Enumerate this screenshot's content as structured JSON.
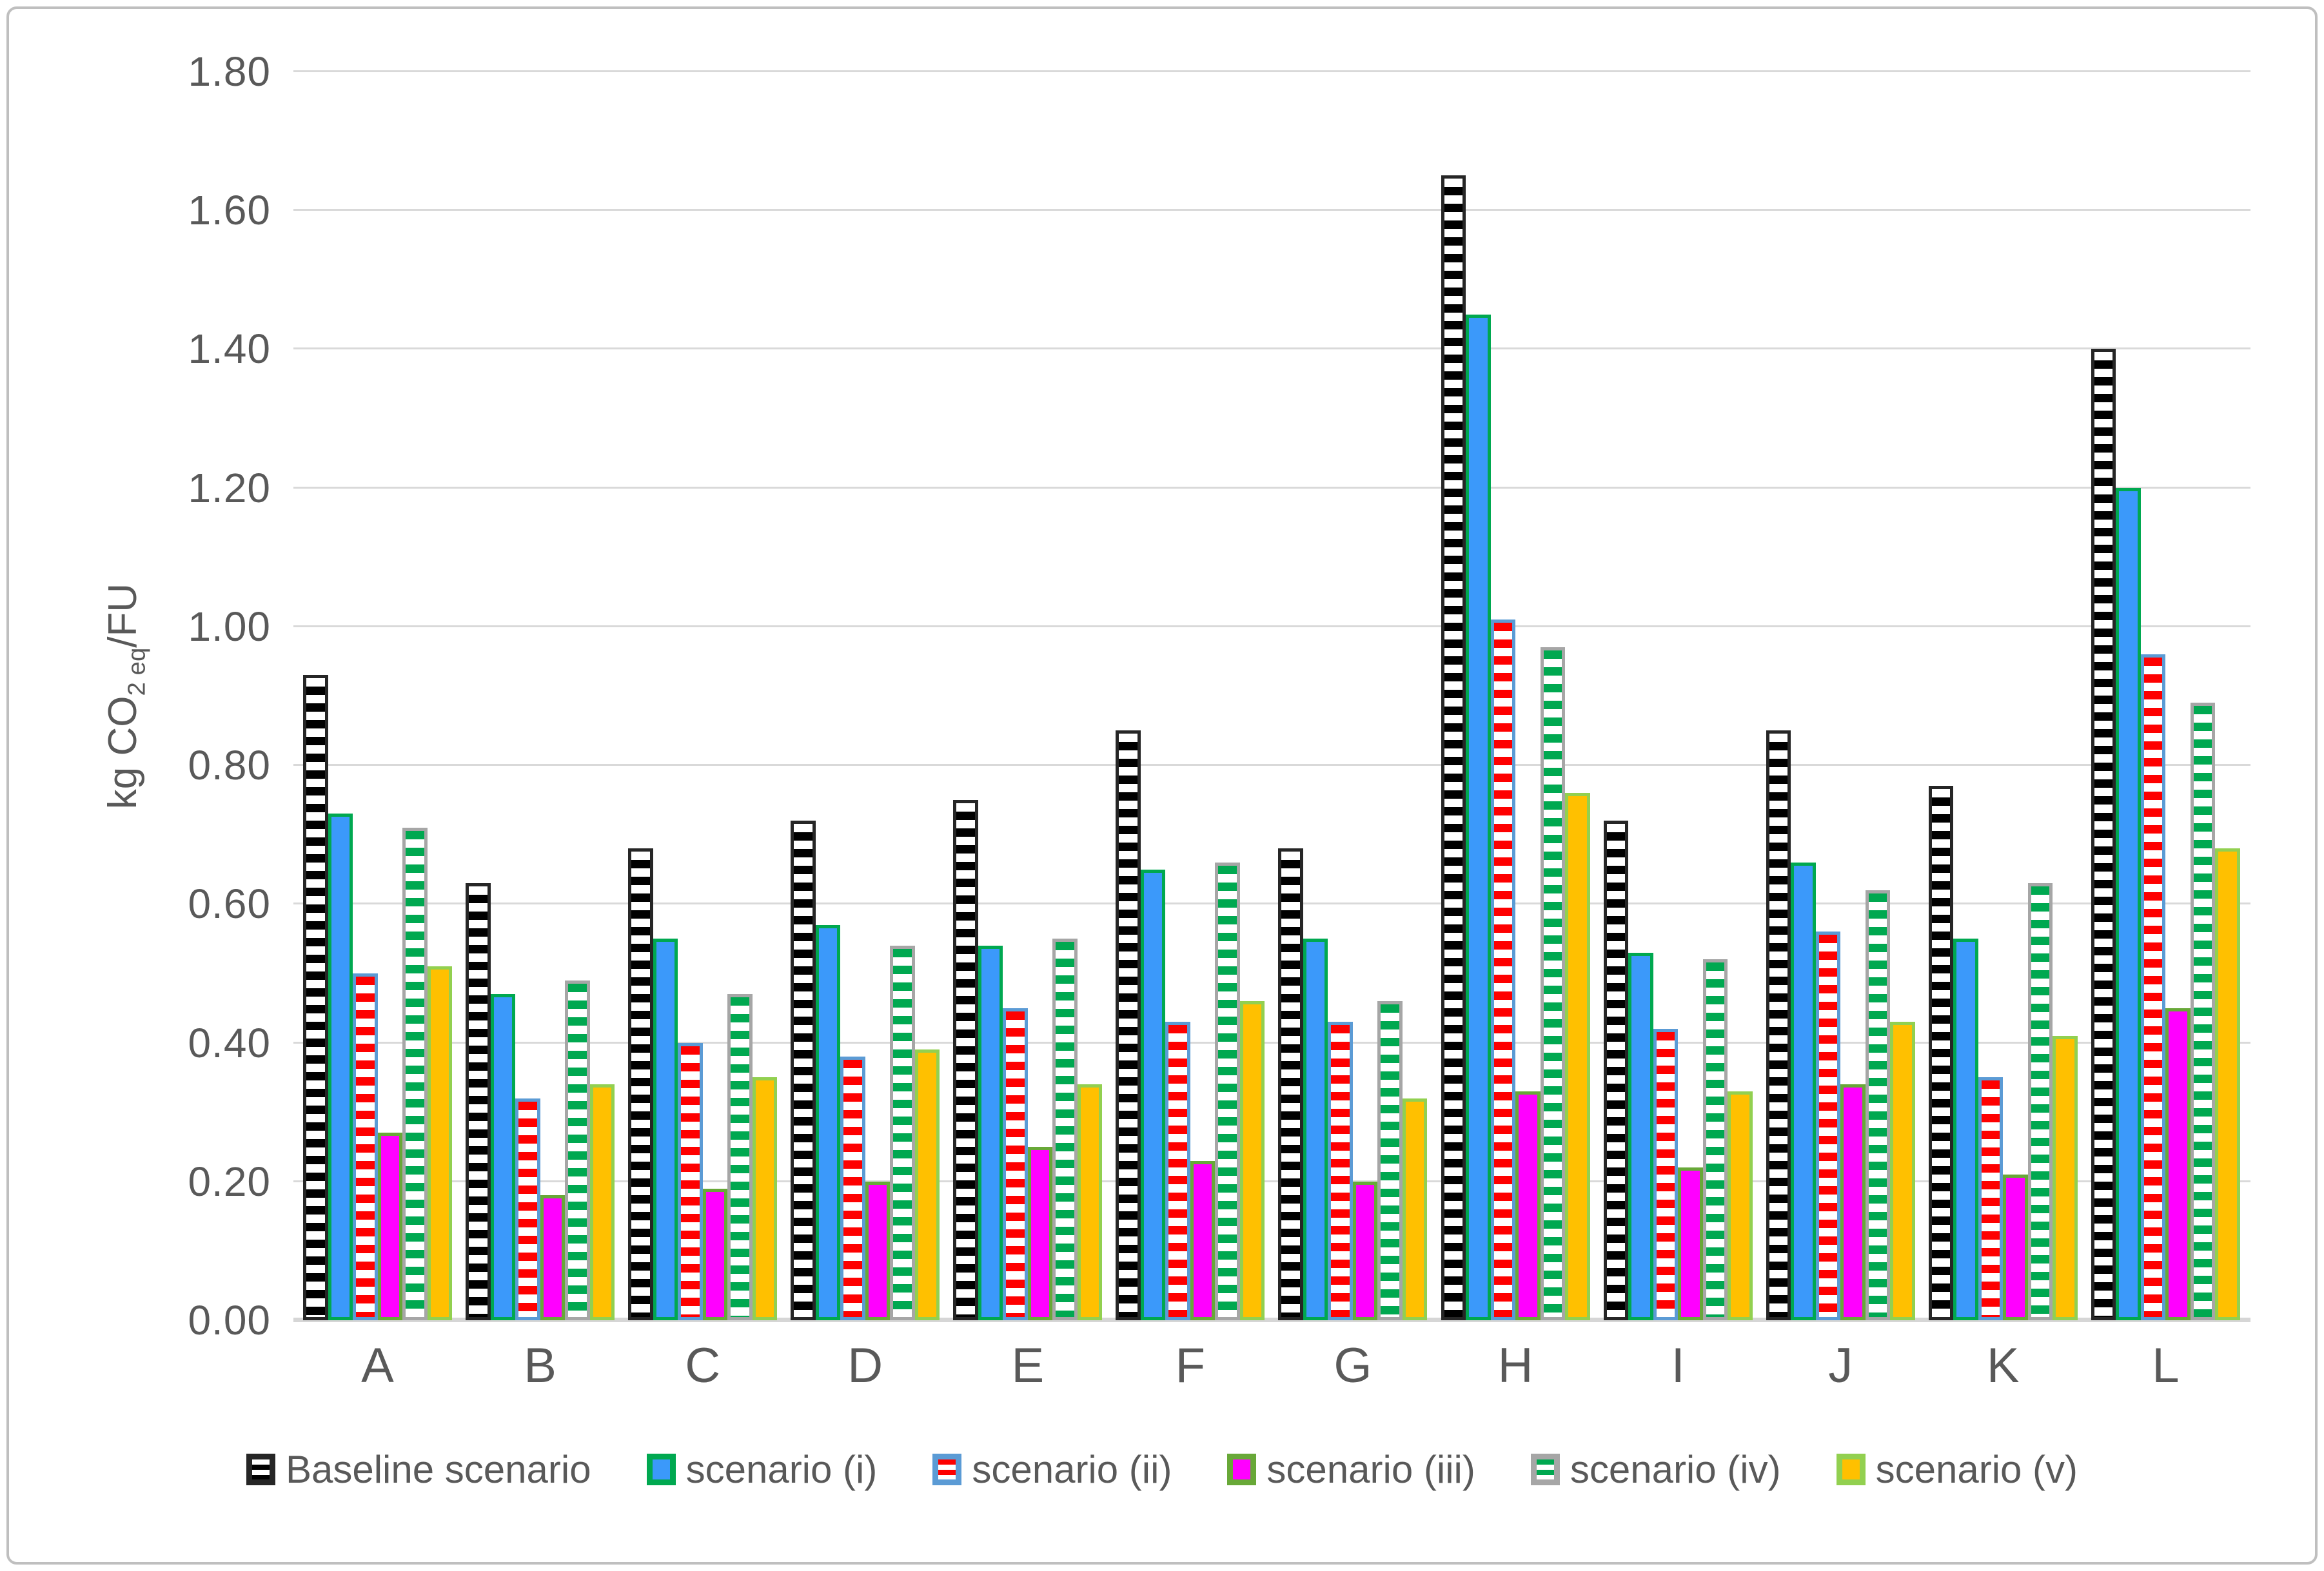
{
  "chart_data": {
    "type": "bar",
    "title": "",
    "ylabel_text": "kg CO2 eq/FU",
    "ylabel_parts": {
      "prefix": "kg  CO",
      "sub": "2 eq",
      "suffix": "/FU"
    },
    "categories": [
      "A",
      "B",
      "C",
      "D",
      "E",
      "F",
      "G",
      "H",
      "I",
      "J",
      "K",
      "L"
    ],
    "series": [
      {
        "name": "Baseline scenario",
        "pattern": "stripes",
        "stripe_color": "#000000",
        "fill": "#ffffff",
        "border": "#262626",
        "stripe_first": false,
        "values": [
          0.93,
          0.63,
          0.68,
          0.72,
          0.75,
          0.85,
          0.68,
          1.65,
          0.72,
          0.85,
          0.77,
          1.4
        ]
      },
      {
        "name": "scenario (i)",
        "pattern": "solid",
        "stripe_color": "",
        "fill": "#3b99fa",
        "border": "#00a850",
        "stripe_first": false,
        "values": [
          0.73,
          0.47,
          0.55,
          0.57,
          0.54,
          0.65,
          0.55,
          1.45,
          0.53,
          0.66,
          0.55,
          1.2
        ]
      },
      {
        "name": "scenario (ii)",
        "pattern": "stripes",
        "stripe_color": "#fe0000",
        "fill": "#ffffff",
        "border": "#5b9bd5",
        "stripe_first": true,
        "values": [
          0.5,
          0.32,
          0.4,
          0.38,
          0.45,
          0.43,
          0.43,
          1.01,
          0.42,
          0.56,
          0.35,
          0.96
        ]
      },
      {
        "name": "scenario (iii)",
        "pattern": "solid",
        "stripe_color": "",
        "fill": "#ff00ff",
        "border": "#68a838",
        "stripe_first": false,
        "values": [
          0.27,
          0.18,
          0.19,
          0.2,
          0.25,
          0.23,
          0.2,
          0.33,
          0.22,
          0.34,
          0.21,
          0.45
        ]
      },
      {
        "name": "scenario (iv)",
        "pattern": "stripes",
        "stripe_color": "#00a850",
        "fill": "#ffffff",
        "border": "#a6a6a6",
        "stripe_first": true,
        "values": [
          0.71,
          0.49,
          0.47,
          0.54,
          0.55,
          0.66,
          0.46,
          0.97,
          0.52,
          0.62,
          0.63,
          0.89
        ]
      },
      {
        "name": "scenario (v)",
        "pattern": "solid",
        "stripe_color": "",
        "fill": "#ffc000",
        "border": "#92d050",
        "stripe_first": false,
        "values": [
          0.51,
          0.34,
          0.35,
          0.39,
          0.34,
          0.46,
          0.32,
          0.76,
          0.33,
          0.43,
          0.41,
          0.68
        ]
      }
    ],
    "y_axis": {
      "min": 0.0,
      "max": 1.8,
      "step": 0.2,
      "tick_labels": [
        "0.00",
        "0.20",
        "0.40",
        "0.60",
        "0.80",
        "1.00",
        "1.20",
        "1.40",
        "1.60",
        "1.80"
      ]
    },
    "grid": true,
    "legend_position": "bottom",
    "colors": {
      "grid": "#d9d9d9",
      "axis_line": "#d6d6d6",
      "text": "#595959",
      "frame": "#bfbfbf"
    }
  }
}
